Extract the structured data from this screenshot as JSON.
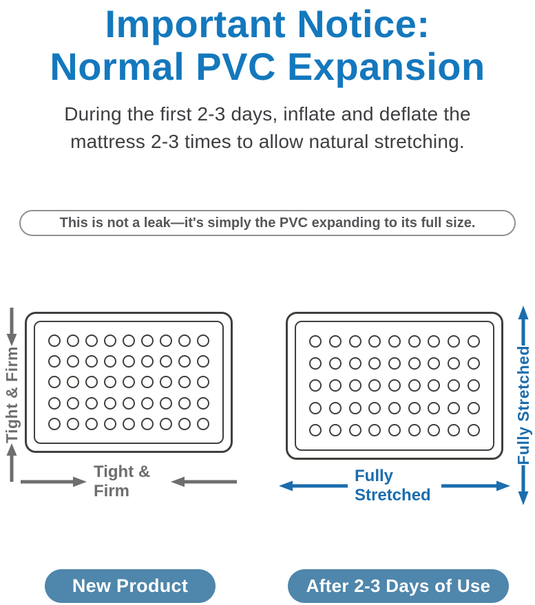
{
  "colors": {
    "title_blue": "#1478bd",
    "accent_blue": "#1b6dad",
    "gray": "#6e6e6e",
    "outline": "#3f3f3b",
    "notice_border": "#8f8f8f",
    "notice_text": "#56565a",
    "badge_bg": "#4f86ab",
    "badge_text": "#ffffff",
    "body_text": "#3e3e42",
    "background": "#ffffff"
  },
  "title": {
    "line1": "Important Notice:",
    "line2": "Normal PVC Expansion"
  },
  "subtitle": {
    "line1": "During the first 2-3 days, inflate and deflate the",
    "line2": "mattress 2-3 times to allow natural stretching."
  },
  "notice": "This is not a leak—it's simply the PVC expanding to its full size.",
  "diagrams": [
    {
      "id": "new-product",
      "side_label": "Tight & Firm",
      "bottom_label": "Tight & Firm",
      "rows": 5,
      "cols": 9,
      "arrows": "inward",
      "color": "#6e6e6e"
    },
    {
      "id": "after-2-3-days",
      "side_label": "Fully Stretched",
      "bottom_label": "Fully Stretched",
      "rows": 5,
      "cols": 9,
      "arrows": "outward",
      "color": "#1b6dad"
    }
  ],
  "badges": [
    {
      "label": "New Product"
    },
    {
      "label": "After 2-3 Days of Use"
    }
  ],
  "icons": {
    "left_vertical": [
      "arrow-down-icon",
      "arrow-up-icon"
    ],
    "left_horizontal": [
      "arrow-right-icon",
      "arrow-left-icon"
    ],
    "right_vertical": [
      "arrow-up-icon",
      "arrow-down-icon"
    ],
    "right_horizontal": [
      "arrow-left-icon",
      "arrow-right-icon"
    ]
  }
}
